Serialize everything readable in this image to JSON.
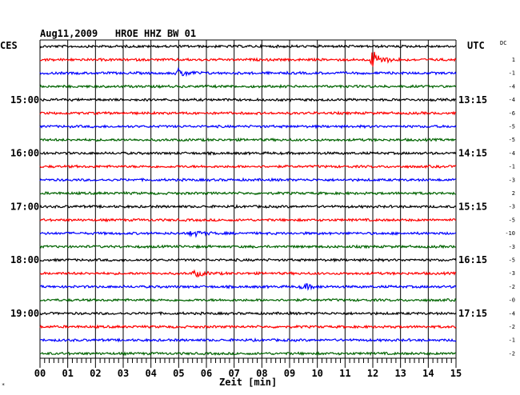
{
  "header": {
    "title": "Aug11,2009   HROE HHZ BW 01",
    "left_label": "CES",
    "right_label": "UTC",
    "dc_header": "DC"
  },
  "chart_data": {
    "type": "line",
    "title": "Aug11,2009   HROE HHZ BW 01",
    "xlabel": "Zeit [min]",
    "xlim": [
      0,
      15
    ],
    "x_ticks": [
      "00",
      "01",
      "02",
      "03",
      "04",
      "05",
      "06",
      "07",
      "08",
      "09",
      "10",
      "11",
      "12",
      "13",
      "14",
      "15"
    ],
    "grid": true,
    "colors": [
      "#000000",
      "#ff0000",
      "#0000ff",
      "#006400"
    ],
    "trace_count": 24,
    "left_time_labels": [
      {
        "trace": 4,
        "label": "15:00"
      },
      {
        "trace": 8,
        "label": "16:00"
      },
      {
        "trace": 12,
        "label": "17:00"
      },
      {
        "trace": 16,
        "label": "18:00"
      },
      {
        "trace": 20,
        "label": "19:00"
      }
    ],
    "right_time_labels": [
      {
        "trace": 4,
        "label": "13:15"
      },
      {
        "trace": 8,
        "label": "14:15"
      },
      {
        "trace": 12,
        "label": "15:15"
      },
      {
        "trace": 16,
        "label": "16:15"
      },
      {
        "trace": 20,
        "label": "17:15"
      }
    ],
    "dc_offsets": [
      "1",
      "-1",
      "-4",
      "-4",
      "-6",
      "-5",
      "-5",
      "-4",
      "-1",
      "-3",
      "2",
      "-3",
      "-5",
      "-10",
      "-3",
      "-5",
      "-3",
      "-2",
      "-0",
      "-4",
      "-2",
      "-1",
      "-2"
    ],
    "events": [
      {
        "trace": 1,
        "minute": 12.0,
        "amplitude": 3.5
      },
      {
        "trace": 2,
        "minute": 5.0,
        "amplitude": 1.6
      },
      {
        "trace": 14,
        "minute": 5.5,
        "amplitude": 1.2
      },
      {
        "trace": 17,
        "minute": 5.6,
        "amplitude": 1.2
      },
      {
        "trace": 18,
        "minute": 9.5,
        "amplitude": 1.1
      }
    ]
  }
}
